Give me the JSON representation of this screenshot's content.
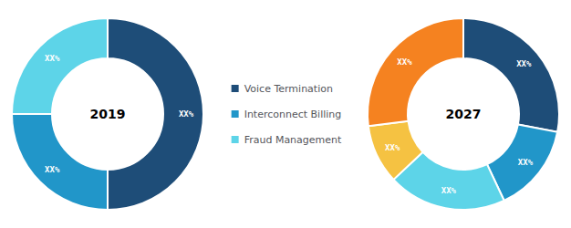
{
  "chart_data": [
    {
      "type": "pie",
      "title": "2019",
      "categories": [
        "Voice Termination",
        "Interconnect Billing",
        "Fraud Management"
      ],
      "values": [
        50,
        25,
        25
      ],
      "value_labels": [
        "XX%",
        "XX%",
        "XX%"
      ],
      "colors": [
        "#1e4d78",
        "#2196c9",
        "#5dd4e8"
      ],
      "data_labels": true,
      "legend": "center"
    },
    {
      "type": "pie",
      "title": "2027",
      "categories": [
        "Voice Termination",
        "Interconnect Billing",
        "Fraud Management",
        null,
        null
      ],
      "values": [
        28,
        15,
        20,
        10,
        27
      ],
      "value_labels": [
        "XX%",
        "XX%",
        "XX%",
        "XX%",
        "XX%"
      ],
      "colors": [
        "#1e4d78",
        "#2196c9",
        "#5dd4e8",
        "#f5c242",
        "#f58220"
      ],
      "data_labels": true,
      "legend": "center"
    }
  ]
}
